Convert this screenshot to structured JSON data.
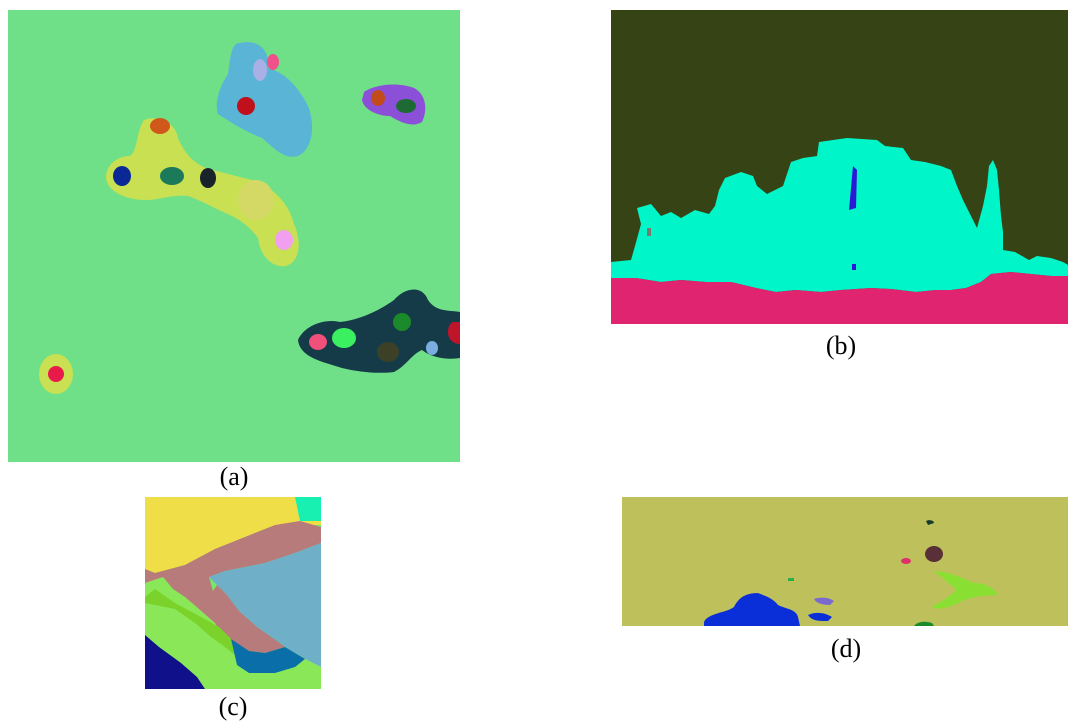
{
  "panels": [
    {
      "caption": "(a)"
    },
    {
      "caption": "(b)"
    },
    {
      "caption": "(c)"
    },
    {
      "caption": "(d)"
    }
  ],
  "colors": {
    "a_background": "#6fe087",
    "a_blob_blue": "#5ab4d6",
    "a_blob_purple": "#8c4fd8",
    "a_blob_yellow": "#c8e052",
    "a_blob_dark": "#163b48",
    "b_sky": "#354315",
    "b_structure": "#00f5c8",
    "b_ground": "#e0246f",
    "c_brown": "#b77b7b",
    "c_lightblue": "#6fb0c8",
    "d_background": "#bec05c",
    "d_blue": "#0a2fd8"
  }
}
